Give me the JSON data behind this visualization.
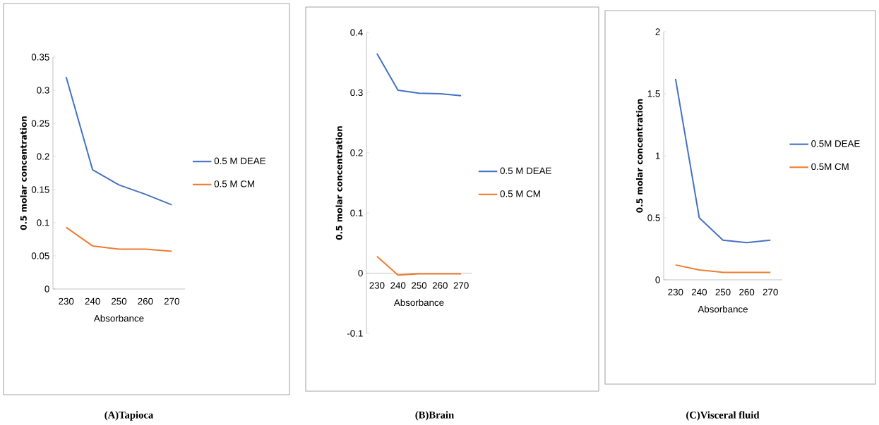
{
  "chart_data": [
    {
      "type": "line",
      "title": "(A)Tapioca",
      "xlabel": "Absorbance",
      "ylabel": "0.5 molar concentration",
      "categories": [
        "230",
        "240",
        "250",
        "260",
        "270"
      ],
      "ylim": [
        0,
        0.35
      ],
      "yticks": [
        0,
        0.05,
        0.1,
        0.15,
        0.2,
        0.25,
        0.3,
        0.35
      ],
      "legend": "right",
      "series": [
        {
          "name": "0.5 M DEAE",
          "color": "#4472c4",
          "values": [
            0.32,
            0.18,
            0.157,
            0.143,
            0.127
          ]
        },
        {
          "name": "0.5 M CM",
          "color": "#ed7d31",
          "values": [
            0.093,
            0.065,
            0.06,
            0.06,
            0.057
          ]
        }
      ]
    },
    {
      "type": "line",
      "title": "(B)Brain",
      "xlabel": "Absorbance",
      "ylabel": "0.5 molar concentration",
      "categories": [
        "230",
        "240",
        "250",
        "260",
        "270"
      ],
      "ylim": [
        -0.1,
        0.4
      ],
      "yticks": [
        -0.1,
        0,
        0.1,
        0.2,
        0.3,
        0.4
      ],
      "legend": "right",
      "series": [
        {
          "name": "0.5 M DEAE",
          "color": "#4472c4",
          "values": [
            0.365,
            0.304,
            0.299,
            0.298,
            0.295
          ]
        },
        {
          "name": "0.5 M CM",
          "color": "#ed7d31",
          "values": [
            0.028,
            -0.003,
            -0.001,
            -0.001,
            -0.001
          ]
        }
      ]
    },
    {
      "type": "line",
      "title": "(C)Visceral fluid",
      "xlabel": "Absorbance",
      "ylabel": "0.5 molar concentration",
      "categories": [
        "230",
        "240",
        "250",
        "260",
        "270"
      ],
      "ylim": [
        0,
        2
      ],
      "yticks": [
        0,
        0.5,
        1,
        1.5,
        2
      ],
      "legend": "right",
      "series": [
        {
          "name": "0.5M DEAE",
          "color": "#4472c4",
          "values": [
            1.62,
            0.5,
            0.32,
            0.3,
            0.32
          ]
        },
        {
          "name": "0.5M CM",
          "color": "#ed7d31",
          "values": [
            0.12,
            0.08,
            0.06,
            0.06,
            0.06
          ]
        }
      ]
    }
  ]
}
